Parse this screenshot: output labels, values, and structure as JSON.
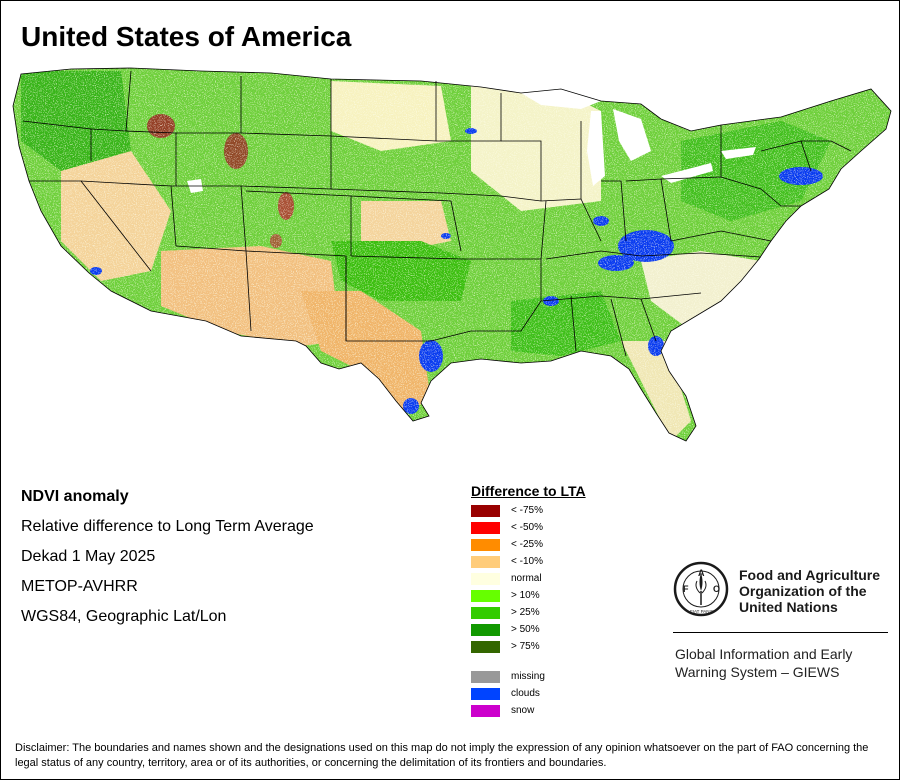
{
  "title": "United States of America",
  "info": {
    "product": "NDVI anomaly",
    "description": "Relative difference to Long Term Average",
    "period": "Dekad 1 May 2025",
    "sensor": "METOP-AVHRR",
    "projection": "WGS84, Geographic Lat/Lon"
  },
  "legend": {
    "title": "Difference to LTA",
    "classes": [
      {
        "label": "< -75%",
        "color": "#990000"
      },
      {
        "label": "< -50%",
        "color": "#ff0000"
      },
      {
        "label": "< -25%",
        "color": "#ff8c00"
      },
      {
        "label": "< -10%",
        "color": "#ffcc7a"
      },
      {
        "label": "normal",
        "color": "#ffffe0"
      },
      {
        "label": "> 10%",
        "color": "#66ff00"
      },
      {
        "label": "> 25%",
        "color": "#33cc00"
      },
      {
        "label": "> 50%",
        "color": "#119900"
      },
      {
        "label": "> 75%",
        "color": "#336600"
      }
    ],
    "other_classes": [
      {
        "label": "missing",
        "color": "#999999"
      },
      {
        "label": "clouds",
        "color": "#0044ff"
      },
      {
        "label": "snow",
        "color": "#cc00cc"
      }
    ]
  },
  "organization": {
    "name_line1": "Food and Agriculture",
    "name_line2": "Organization of the",
    "name_line3": "United Nations",
    "logo_letters": "FAO",
    "logo_motto": "FIAT PANIS",
    "system_line1": "Global Information and Early",
    "system_line2": "Warning System – GIEWS"
  },
  "disclaimer": "Disclaimer: The boundaries and names shown and the designations used on this map do not imply the expression of any opinion whatsoever on the part of FAO concerning the legal status of any country, territory, area or of its authorities, or concerning the delimitation of its frontiers and boundaries."
}
